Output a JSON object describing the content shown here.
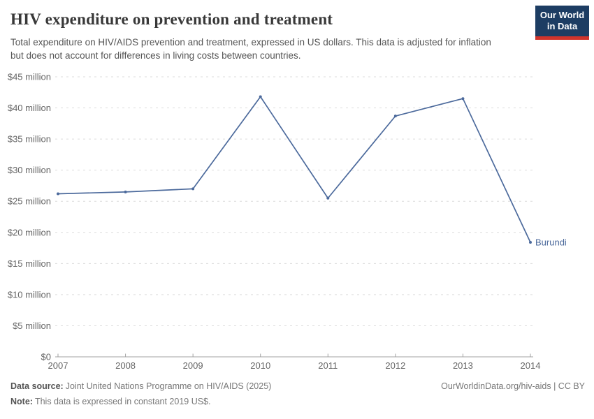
{
  "header": {
    "title": "HIV expenditure on prevention and treatment",
    "subtitle": "Total expenditure on HIV/AIDS prevention and treatment, expressed in US dollars. This data is adjusted for inflation but does not account for differences in living costs between countries.",
    "logo": {
      "line1": "Our World",
      "line2": "in Data"
    }
  },
  "theme": {
    "brand_navy": "#1d3d63",
    "brand_red": "#d0342c",
    "series_blue": "#4c6a9c"
  },
  "chart_data": {
    "type": "line",
    "title": "HIV expenditure on prevention and treatment",
    "x": [
      "2007",
      "2008",
      "2009",
      "2010",
      "2011",
      "2012",
      "2013",
      "2014"
    ],
    "series": [
      {
        "name": "Burundi",
        "color": "#4c6a9c",
        "values": [
          26.2,
          26.5,
          27.0,
          41.8,
          25.5,
          38.7,
          41.5,
          18.4
        ]
      }
    ],
    "ylim": [
      0,
      45
    ],
    "ytick_values": [
      0,
      5,
      10,
      15,
      20,
      25,
      30,
      35,
      40,
      45
    ],
    "ytick_labels": [
      "$0",
      "$5 million",
      "$10 million",
      "$15 million",
      "$20 million",
      "$25 million",
      "$30 million",
      "$35 million",
      "$40 million",
      "$45 million"
    ],
    "grid": "horizontal-dashed",
    "legend_position": "end-of-line-label",
    "point_markers": true
  },
  "footer": {
    "datasource_label": "Data source:",
    "datasource": "Joint United Nations Programme on HIV/AIDS (2025)",
    "note_label": "Note:",
    "note": "This data is expressed in constant 2019 US$.",
    "attribution": "OurWorldinData.org/hiv-aids | CC BY"
  }
}
